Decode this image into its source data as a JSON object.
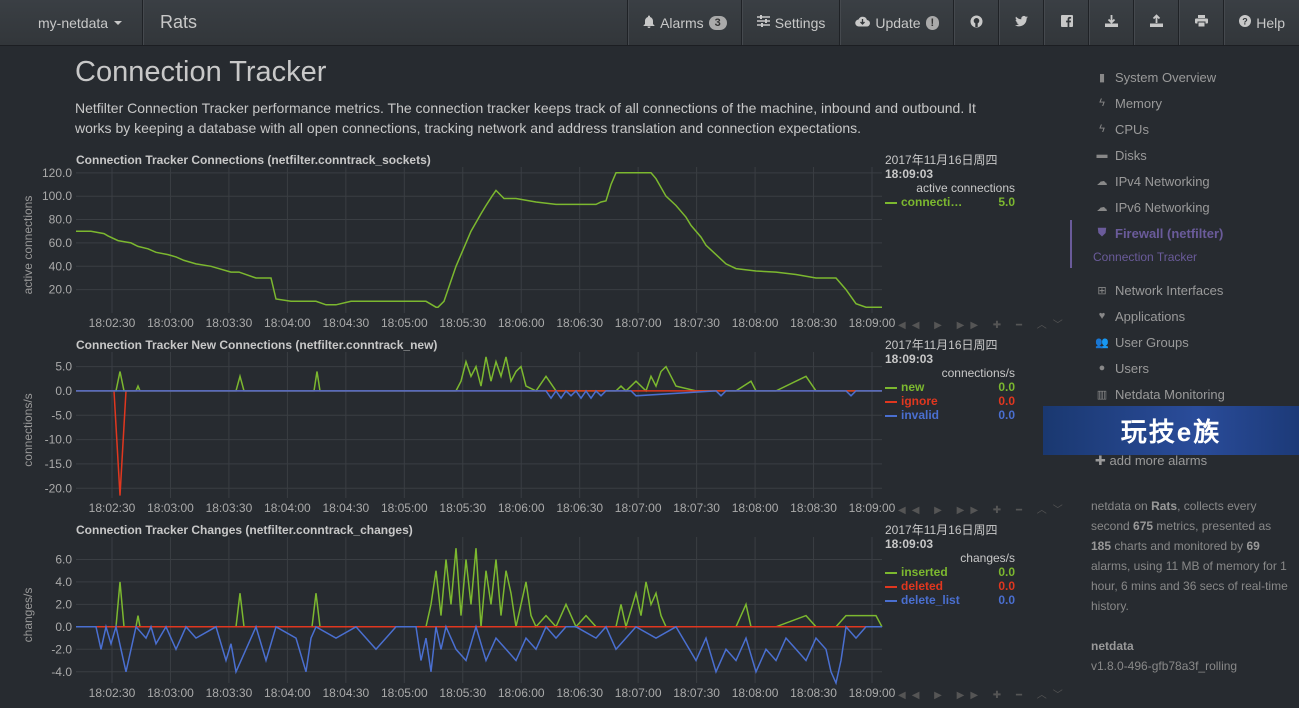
{
  "navbar": {
    "brand": "my-netdata",
    "host": "Rats",
    "alarms_label": "Alarms",
    "alarms_count": "3",
    "settings_label": "Settings",
    "update_label": "Update",
    "update_badge": "!",
    "help_label": "Help",
    "icons": [
      "github-icon",
      "twitter-icon",
      "facebook-icon",
      "download-icon",
      "upload-icon",
      "print-icon"
    ]
  },
  "page": {
    "title": "Connection Tracker",
    "description": "Netfilter Connection Tracker performance metrics. The connection tracker keeps track of all connections of the machine, inbound and outbound. It works by keeping a database with all open connections, tracking network and address translation and connection expectations."
  },
  "chart_data": [
    {
      "type": "line",
      "title": "Connection Tracker Connections (netfilter.conntrack_sockets)",
      "ylabel": "active connections",
      "units": "active connections",
      "date": "2017年11月16日周四",
      "time": "18:09:03",
      "ylim": [
        0,
        125
      ],
      "yticks": [
        "120.0",
        "100.0",
        "80.0",
        "60.0",
        "40.0",
        "20.0"
      ],
      "ytick_values": [
        120,
        100,
        80,
        60,
        40,
        20
      ],
      "xticks": [
        "18:02:30",
        "18:03:00",
        "18:03:30",
        "18:04:00",
        "18:04:30",
        "18:05:00",
        "18:05:30",
        "18:06:00",
        "18:06:30",
        "18:07:00",
        "18:07:30",
        "18:08:00",
        "18:08:30",
        "18:09:00"
      ],
      "series": [
        {
          "name": "connecti…",
          "color": "#7cb82f",
          "last_value": "5.0",
          "x": [
            0,
            15,
            28,
            32,
            42,
            55,
            62,
            72,
            80,
            92,
            100,
            108,
            120,
            135,
            155,
            163,
            180,
            195,
            200,
            215,
            240,
            250,
            260,
            275,
            310,
            330,
            350,
            360,
            362,
            368,
            372,
            380,
            390,
            395,
            405,
            410,
            416,
            420,
            428,
            440,
            460,
            480,
            490,
            520,
            525,
            530,
            535,
            540,
            560,
            575,
            580,
            590,
            600,
            610,
            615,
            625,
            630,
            640,
            650,
            660,
            680,
            700,
            720,
            740,
            760,
            770,
            780,
            790,
            800,
            806
          ],
          "y": [
            70,
            70,
            68,
            66,
            62,
            60,
            57,
            55,
            52,
            50,
            48,
            45,
            42,
            40,
            35,
            35,
            30,
            30,
            12,
            10,
            10,
            7,
            7,
            10,
            10,
            10,
            10,
            5,
            5,
            10,
            20,
            40,
            60,
            70,
            85,
            92,
            100,
            105,
            98,
            98,
            95,
            93,
            93,
            93,
            95,
            96,
            110,
            120,
            120,
            120,
            115,
            100,
            92,
            82,
            75,
            65,
            58,
            50,
            42,
            38,
            36,
            35,
            33,
            30,
            30,
            20,
            8,
            5,
            5,
            5
          ]
        }
      ]
    },
    {
      "type": "line",
      "title": "Connection Tracker New Connections (netfilter.conntrack_new)",
      "ylabel": "connections/s",
      "units": "connections/s",
      "date": "2017年11月16日周四",
      "time": "18:09:03",
      "ylim": [
        -22,
        8
      ],
      "yticks": [
        "5.0",
        "0.0",
        "-5.0",
        "-10.0",
        "-15.0",
        "-20.0"
      ],
      "ytick_values": [
        5,
        0,
        -5,
        -10,
        -15,
        -20
      ],
      "xticks": [
        "18:02:30",
        "18:03:00",
        "18:03:30",
        "18:04:00",
        "18:04:30",
        "18:05:00",
        "18:05:30",
        "18:06:00",
        "18:06:30",
        "18:07:00",
        "18:07:30",
        "18:08:00",
        "18:08:30",
        "18:09:00"
      ],
      "series": [
        {
          "name": "new",
          "color": "#7cb82f",
          "last_value": "0.0",
          "x": [
            0,
            40,
            44,
            48,
            60,
            62,
            64,
            160,
            164,
            168,
            238,
            241,
            244,
            380,
            385,
            390,
            395,
            400,
            405,
            410,
            415,
            420,
            425,
            430,
            435,
            440,
            445,
            450,
            460,
            470,
            480,
            500,
            530,
            540,
            545,
            550,
            560,
            570,
            575,
            580,
            585,
            590,
            595,
            600,
            620,
            660,
            675,
            680,
            700,
            730,
            740,
            770,
            806
          ],
          "y": [
            0,
            0,
            4,
            0,
            0,
            1,
            0,
            0,
            3,
            0,
            0,
            4,
            0,
            0,
            2,
            6,
            3,
            5,
            1,
            7,
            2,
            6,
            3,
            7,
            2,
            4,
            5,
            1,
            0,
            3,
            0,
            0,
            0,
            0,
            1,
            0,
            2,
            0,
            3,
            1,
            4,
            5,
            3,
            1,
            0,
            0,
            2,
            0,
            0,
            3,
            0,
            0,
            0
          ]
        },
        {
          "name": "ignore",
          "color": "#e0371f",
          "last_value": "0.0",
          "x": [
            0,
            38,
            44,
            50,
            806
          ],
          "y": [
            0,
            0,
            -21.5,
            0,
            0
          ]
        },
        {
          "name": "invalid",
          "color": "#4a6fd0",
          "last_value": "0.0",
          "x": [
            0,
            470,
            475,
            480,
            485,
            490,
            495,
            500,
            505,
            510,
            515,
            520,
            525,
            530,
            555,
            560,
            640,
            645,
            650,
            740,
            760,
            770,
            775,
            780,
            806
          ],
          "y": [
            0,
            0,
            -1.5,
            0,
            -1.5,
            0,
            -1,
            0,
            -1.5,
            0,
            -1.5,
            0,
            -1,
            0,
            0,
            -1,
            0,
            -1,
            0,
            0,
            0,
            0,
            -1,
            0,
            0
          ]
        }
      ]
    },
    {
      "type": "line",
      "title": "Connection Tracker Changes (netfilter.conntrack_changes)",
      "ylabel": "changes/s",
      "units": "changes/s",
      "date": "2017年11月16日周四",
      "time": "18:09:03",
      "ylim": [
        -5,
        8
      ],
      "yticks": [
        "6.0",
        "4.0",
        "2.0",
        "0.0",
        "-2.0",
        "-4.0"
      ],
      "ytick_values": [
        6,
        4,
        2,
        0,
        -2,
        -4
      ],
      "xticks": [
        "18:02:30",
        "18:03:00",
        "18:03:30",
        "18:04:00",
        "18:04:30",
        "18:05:00",
        "18:05:30",
        "18:06:00",
        "18:06:30",
        "18:07:00",
        "18:07:30",
        "18:08:00",
        "18:08:30",
        "18:09:00"
      ],
      "series": [
        {
          "name": "inserted",
          "color": "#7cb82f",
          "last_value": "0.0",
          "x": [
            0,
            40,
            44,
            48,
            60,
            62,
            64,
            160,
            164,
            168,
            236,
            240,
            244,
            350,
            355,
            360,
            365,
            370,
            375,
            380,
            385,
            390,
            395,
            400,
            405,
            410,
            415,
            420,
            425,
            430,
            435,
            440,
            445,
            450,
            455,
            460,
            470,
            480,
            490,
            500,
            510,
            520,
            530,
            540,
            545,
            550,
            560,
            565,
            570,
            575,
            580,
            585,
            590,
            600,
            620,
            660,
            670,
            675,
            680,
            700,
            730,
            740,
            760,
            770,
            800,
            806
          ],
          "y": [
            0,
            0,
            4,
            0,
            0,
            1,
            0,
            0,
            3,
            0,
            0,
            3,
            0,
            0,
            2,
            5,
            1,
            6,
            2,
            7,
            1,
            6,
            2,
            7,
            0,
            5,
            2,
            6,
            1,
            5,
            3,
            0,
            2,
            4,
            1,
            0,
            1,
            0,
            2,
            0,
            1,
            0,
            0,
            0,
            2,
            0,
            3,
            1,
            4,
            2,
            3,
            1,
            0,
            0,
            0,
            0,
            2,
            0,
            0,
            0,
            1,
            0,
            0,
            1,
            1,
            0
          ]
        },
        {
          "name": "deleted",
          "color": "#e0371f",
          "last_value": "0.0",
          "x": [
            0,
            806
          ],
          "y": [
            0,
            0
          ]
        },
        {
          "name": "delete_list",
          "color": "#4a6fd0",
          "last_value": "0.0",
          "x": [
            0,
            20,
            25,
            30,
            35,
            40,
            45,
            50,
            60,
            70,
            75,
            80,
            90,
            100,
            110,
            120,
            140,
            150,
            155,
            160,
            170,
            180,
            190,
            200,
            220,
            230,
            235,
            240,
            260,
            280,
            300,
            320,
            340,
            345,
            350,
            355,
            360,
            365,
            370,
            375,
            380,
            390,
            400,
            410,
            420,
            430,
            440,
            450,
            460,
            470,
            480,
            490,
            500,
            520,
            530,
            540,
            560,
            580,
            600,
            620,
            630,
            640,
            650,
            660,
            670,
            680,
            690,
            700,
            710,
            720,
            730,
            740,
            750,
            755,
            760,
            765,
            770,
            780,
            790,
            800,
            806
          ],
          "y": [
            0,
            0,
            -2,
            0,
            -1.5,
            0,
            -2,
            -4,
            0,
            -1,
            0,
            -1.5,
            0,
            -2,
            0,
            -1,
            0,
            -3,
            -1.5,
            -4,
            -2,
            0,
            -3,
            0,
            -1,
            -4,
            -1,
            0,
            -1,
            0,
            -2,
            0,
            0,
            -3,
            -1,
            -4,
            0,
            -2,
            0,
            -1,
            -2,
            -3,
            0,
            -3,
            -1,
            -2,
            -3,
            -1,
            -2,
            0,
            -1,
            0,
            0,
            -1,
            0,
            -2,
            0,
            -1,
            0,
            -3,
            -1,
            -4,
            -2,
            -3,
            -1,
            -4,
            -2,
            -3,
            -1,
            -2,
            -3,
            -1,
            -2,
            -4,
            -5,
            -3,
            0,
            -1,
            0,
            0,
            0
          ]
        }
      ]
    }
  ],
  "sidebar": {
    "items": [
      {
        "label": "System Overview",
        "icon": "bookmark-icon"
      },
      {
        "label": "Memory",
        "icon": "bolt-icon"
      },
      {
        "label": "CPUs",
        "icon": "bolt-icon"
      },
      {
        "label": "Disks",
        "icon": "folder-icon"
      },
      {
        "label": "IPv4 Networking",
        "icon": "cloud-icon"
      },
      {
        "label": "IPv6 Networking",
        "icon": "cloud-icon"
      },
      {
        "label": "Firewall (netfilter)",
        "icon": "shield-icon"
      }
    ],
    "subitem": "Connection Tracker",
    "items2": [
      {
        "label": "Network Interfaces",
        "icon": "sitemap-icon"
      },
      {
        "label": "Applications",
        "icon": "heartbeat-icon"
      },
      {
        "label": "User Groups",
        "icon": "users-icon"
      },
      {
        "label": "Users",
        "icon": "user-icon"
      },
      {
        "label": "Netdata Monitoring",
        "icon": "bar-chart-icon"
      }
    ],
    "banner_text": "玩技e族",
    "add_alarms": "add more alarms",
    "info": {
      "prefix": "netdata on ",
      "host": "Rats",
      "mid1": ", collects every second ",
      "metrics": "675",
      "mid2": " metrics, presented as ",
      "charts": "185",
      "mid3": " charts and monitored by ",
      "alarms": "69",
      "suffix": " alarms, using 11 MB of memory for 1 hour, 6 mins and 36 secs of real-time history."
    },
    "version_label": "netdata",
    "version": "v1.8.0-496-gfb78a3f_rolling"
  },
  "colors": {
    "background": "#272b30",
    "grid": "#3a3e43",
    "accent": "#6a5b9a"
  }
}
